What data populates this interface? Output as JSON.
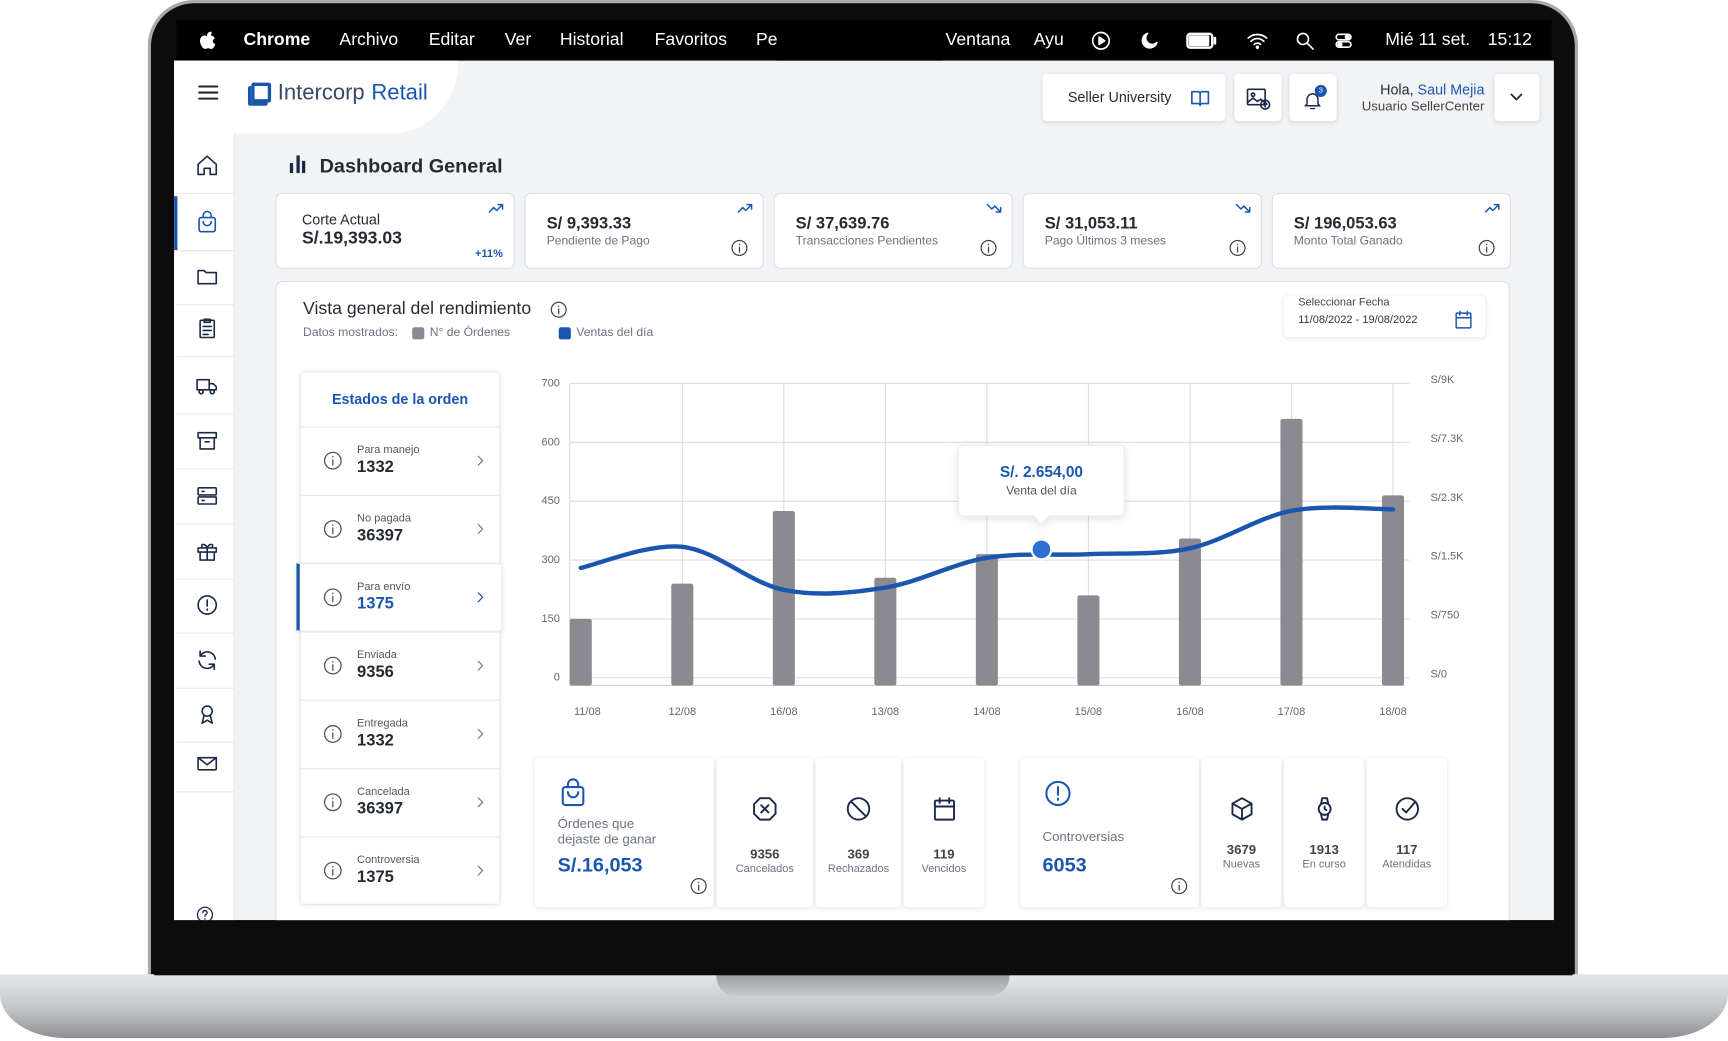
{
  "menu_bar": {
    "items": [
      "Chrome",
      "Archivo",
      "Editar",
      "Ver",
      "Historial",
      "Favoritos",
      "Pe",
      "Ventana",
      "Ayu"
    ],
    "date": "Mié 11 set.",
    "time": "15:12"
  },
  "header": {
    "brand": "Intercorp",
    "brand_suffix": "Retail",
    "button": "Seller University",
    "notifications": 3,
    "greeting": "Hola,",
    "user": "Saul Mejia",
    "role": "Usuario SellerCenter"
  },
  "page_title": "Dashboard General",
  "kpis": [
    {
      "label": "Corte Actual",
      "value": "S/.19,393.03",
      "change": "+11%",
      "trend": "up"
    },
    {
      "value": "S/ 9,393.33",
      "label": "Pendiente de Pago",
      "trend": "up"
    },
    {
      "value": "S/ 37,639.76",
      "label": "Transacciones Pendientes",
      "trend": "down"
    },
    {
      "value": "S/ 31,053.11",
      "label": "Pago Últimos 3 meses",
      "trend": "down"
    },
    {
      "value": "S/ 196,053.63",
      "label": "Monto Total Ganado",
      "trend": "up"
    }
  ],
  "performance": {
    "title": "Vista general del rendimiento",
    "shown_label": "Datos mostrados:",
    "date_label": "Seleccionar Fecha",
    "date_range": "11/08/2022 - 19/08/2022"
  },
  "order_states": {
    "title": "Estados de la orden",
    "items": [
      {
        "label": "Para manejo",
        "count": 1332
      },
      {
        "label": "No pagada",
        "count": 36397
      },
      {
        "label": "Para envío",
        "count": 1375,
        "active": true
      },
      {
        "label": "Enviada",
        "count": 9356
      },
      {
        "label": "Entregada",
        "count": 1332
      },
      {
        "label": "Cancelada",
        "count": 36397
      },
      {
        "label": "Controversia",
        "count": 1375
      }
    ]
  },
  "lost_orders": {
    "title": "Órdenes que dejaste de ganar",
    "value": "S/.16,053",
    "stats": [
      {
        "count": 9356,
        "label": "Cancelados"
      },
      {
        "count": 369,
        "label": "Rechazados"
      },
      {
        "count": 119,
        "label": "Vencidos"
      }
    ]
  },
  "controversies": {
    "title": "Controversias",
    "value": 6053,
    "stats": [
      {
        "count": 3679,
        "label": "Nuevas"
      },
      {
        "count": 1913,
        "label": "En curso"
      },
      {
        "count": 117,
        "label": "Atendidas"
      }
    ]
  },
  "chart_data": {
    "type": "bar",
    "categories": [
      "11/08",
      "12/08",
      "16/08",
      "13/08",
      "14/08",
      "15/08",
      "16/08",
      "17/08",
      "18/08"
    ],
    "series": [
      {
        "name": "N° de Órdenes",
        "color": "#8a8a90",
        "type": "bar",
        "values": [
          150,
          240,
          425,
          255,
          315,
          210,
          355,
          640,
          465
        ]
      },
      {
        "name": "Ventas del día",
        "color": "#1a56b0",
        "type": "line",
        "axis": "y2",
        "values": [
          1400,
          1680,
          1120,
          1150,
          1530,
          1580,
          1660,
          2170,
          2190
        ]
      }
    ],
    "ylim": [
      0,
      700
    ],
    "yticks": [
      0,
      150,
      300,
      450,
      600,
      700
    ],
    "y2lim": [
      0,
      9000
    ],
    "y2ticks": [
      {
        "value": 0,
        "label": "S/0"
      },
      {
        "value": 750,
        "label": "S/750"
      },
      {
        "value": 1500,
        "label": "S/1.5K"
      },
      {
        "value": 2300,
        "label": "S/2.3K"
      },
      {
        "value": 7300,
        "label": "S/7.3K"
      },
      {
        "value": 9000,
        "label": "S/9K"
      }
    ],
    "grid": true,
    "tooltip": {
      "value": "S/. 2.654,00",
      "label": "Venta del día"
    }
  }
}
